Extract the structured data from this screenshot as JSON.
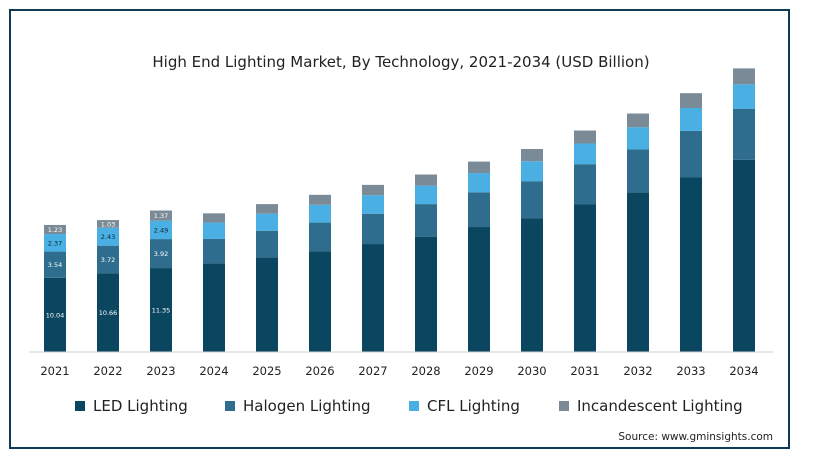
{
  "chart_data": {
    "type": "bar",
    "stacked": true,
    "title": "High End Lighting Market, By Technology, 2021-2034 (USD Billion)",
    "xlabel": "",
    "ylabel": "",
    "categories": [
      "2021",
      "2022",
      "2023",
      "2024",
      "2025",
      "2026",
      "2027",
      "2028",
      "2029",
      "2030",
      "2031",
      "2032",
      "2033",
      "2034"
    ],
    "series": [
      {
        "name": "LED Lighting",
        "color": "#0b4660",
        "values": [
          10.04,
          10.66,
          11.35,
          12.0,
          12.8,
          13.6,
          14.6,
          15.6,
          16.9,
          18.1,
          20.0,
          21.6,
          23.6,
          26.0
        ],
        "labels": [
          "10.04",
          "10.66",
          "11.35"
        ]
      },
      {
        "name": "Halogen Lighting",
        "color": "#2e6d8e",
        "values": [
          3.54,
          3.72,
          3.92,
          3.3,
          3.6,
          3.9,
          4.1,
          4.4,
          4.7,
          5.0,
          5.4,
          5.8,
          6.3,
          6.9
        ],
        "labels": [
          "3.54",
          "3.72",
          "3.92"
        ]
      },
      {
        "name": "CFL Lighting",
        "color": "#4aafe3",
        "values": [
          2.37,
          2.43,
          2.49,
          2.2,
          2.3,
          2.4,
          2.5,
          2.5,
          2.6,
          2.7,
          2.8,
          3.0,
          3.1,
          3.3
        ],
        "labels": [
          "2.37",
          "2.43",
          "2.49"
        ]
      },
      {
        "name": "Incandescent Lighting",
        "color": "#7a8a96",
        "values": [
          1.23,
          1.03,
          1.37,
          1.25,
          1.3,
          1.35,
          1.4,
          1.5,
          1.55,
          1.65,
          1.75,
          1.85,
          2.0,
          2.15
        ],
        "labels": [
          "1.23",
          "1.03",
          "1.37"
        ]
      }
    ],
    "ylim": [
      0,
      38
    ],
    "grid": false,
    "legend_position": "bottom",
    "source": "Source: www.gminsights.com"
  }
}
